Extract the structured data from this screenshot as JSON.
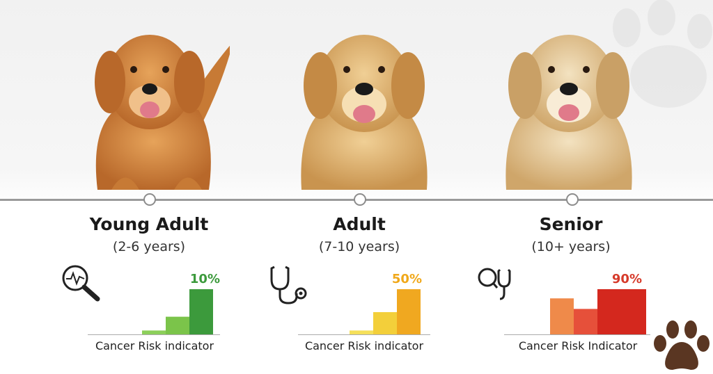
{
  "stages": [
    {
      "title": "Young Adult",
      "years": "(2-6 years)",
      "percent": "10%",
      "percent_color": "#3c9a3c",
      "indicator_label": "Cancer Risk indicator",
      "icon": "magnifier-heartbeat-icon",
      "bar_colors": [
        "#8ccf5a",
        "#7bc44a",
        "#3c9a3c"
      ],
      "bar_levels": [
        0.1,
        0.4,
        1.0
      ]
    },
    {
      "title": "Adult",
      "years": "(7-10 years)",
      "percent": "50%",
      "percent_color": "#f0a81a",
      "indicator_label": "Cancer Risk indicator",
      "icon": "stethoscope-icon",
      "bar_colors": [
        "#f5e05a",
        "#f3cf3a",
        "#f0a820"
      ],
      "bar_levels": [
        0.1,
        0.5,
        1.0
      ]
    },
    {
      "title": "Senior",
      "years": "(10+ years)",
      "percent": "90%",
      "percent_color": "#d63a2a",
      "indicator_label": "Cancer Risk Indicator",
      "icon": "magnifier-stethoscope-icon",
      "bar_colors": [
        "#ef8a4a",
        "#e6503a",
        "#d4281e"
      ],
      "bar_levels": [
        0.8,
        0.57,
        1.0
      ]
    }
  ],
  "decor": {
    "paw": "paw-print-icon",
    "dogs": [
      "golden-retriever-young",
      "golden-retriever-adult",
      "golden-retriever-senior"
    ]
  }
}
